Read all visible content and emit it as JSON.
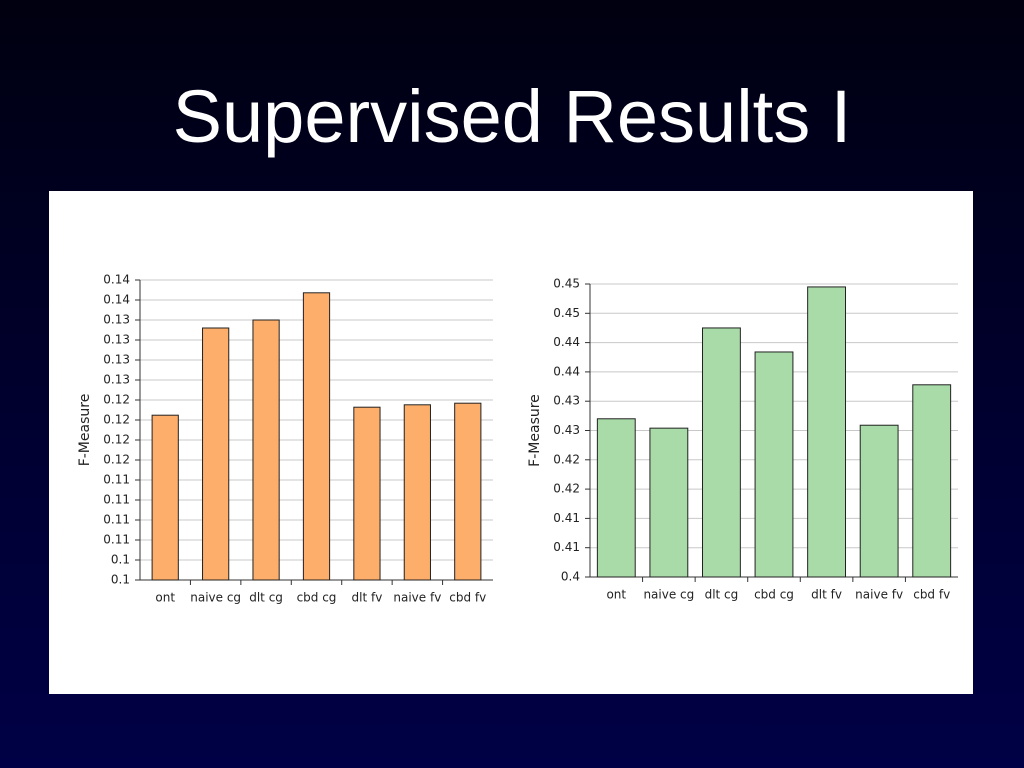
{
  "slide_title": "Supervised Results I",
  "chart_data": [
    {
      "type": "bar",
      "y_label": "F-Measure",
      "categories": [
        "ont",
        "naive cg",
        "dlt cg",
        "cbd cg",
        "dlt fv",
        "naive fv",
        "cbd fv"
      ],
      "values": [
        0.1206,
        0.1315,
        0.1325,
        0.1359,
        0.1216,
        0.1219,
        0.1221
      ],
      "color": "#fdae6b",
      "ylim": [
        0.1,
        0.1375
      ],
      "yticks": [
        {
          "value": 0.1,
          "label": "0.1"
        },
        {
          "value": 0.1025,
          "label": "0.1"
        },
        {
          "value": 0.105,
          "label": "0.11"
        },
        {
          "value": 0.1075,
          "label": "0.11"
        },
        {
          "value": 0.11,
          "label": "0.11"
        },
        {
          "value": 0.1125,
          "label": "0.11"
        },
        {
          "value": 0.115,
          "label": "0.12"
        },
        {
          "value": 0.1175,
          "label": "0.12"
        },
        {
          "value": 0.12,
          "label": "0.12"
        },
        {
          "value": 0.1225,
          "label": "0.12"
        },
        {
          "value": 0.125,
          "label": "0.13"
        },
        {
          "value": 0.1275,
          "label": "0.13"
        },
        {
          "value": 0.13,
          "label": "0.13"
        },
        {
          "value": 0.1325,
          "label": "0.13"
        },
        {
          "value": 0.135,
          "label": "0.14"
        },
        {
          "value": 0.1375,
          "label": "0.14"
        }
      ],
      "grid": true
    },
    {
      "type": "bar",
      "y_label": "F-Measure",
      "categories": [
        "ont",
        "naive cg",
        "dlt cg",
        "cbd cg",
        "dlt fv",
        "naive fv",
        "cbd fv"
      ],
      "values": [
        0.427,
        0.4254,
        0.4425,
        0.4384,
        0.4495,
        0.4259,
        0.4328
      ],
      "color": "#a8dba8",
      "ylim": [
        0.4,
        0.45
      ],
      "yticks": [
        0.4,
        {
          "value": 0.405,
          "label": "0.41"
        },
        0.41,
        {
          "value": 0.415,
          "label": "0.42"
        },
        0.42,
        {
          "value": 0.425,
          "label": "0.43"
        },
        0.43,
        {
          "value": 0.435,
          "label": "0.44"
        },
        0.44,
        {
          "value": 0.445,
          "label": "0.45"
        },
        0.45
      ],
      "grid": true
    }
  ]
}
